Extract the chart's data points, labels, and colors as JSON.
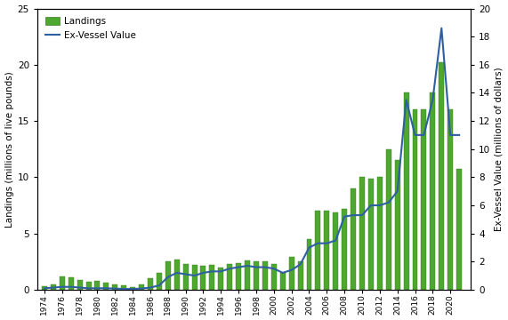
{
  "years": [
    1974,
    1975,
    1976,
    1977,
    1978,
    1979,
    1980,
    1981,
    1982,
    1983,
    1984,
    1985,
    1986,
    1987,
    1988,
    1989,
    1990,
    1991,
    1992,
    1993,
    1994,
    1995,
    1996,
    1997,
    1998,
    1999,
    2000,
    2001,
    2002,
    2003,
    2004,
    2005,
    2006,
    2007,
    2008,
    2009,
    2010,
    2011,
    2012,
    2013,
    2014,
    2015,
    2016,
    2017,
    2018,
    2019,
    2020,
    2021
  ],
  "landings": [
    0.3,
    0.5,
    1.2,
    1.1,
    0.9,
    0.7,
    0.8,
    0.6,
    0.5,
    0.4,
    0.2,
    0.5,
    1.0,
    1.5,
    2.5,
    2.7,
    2.3,
    2.2,
    2.1,
    2.2,
    2.0,
    2.3,
    2.4,
    2.6,
    2.5,
    2.5,
    2.3,
    1.5,
    2.9,
    2.5,
    4.5,
    7.0,
    7.0,
    6.9,
    7.2,
    9.0,
    10.0,
    9.9,
    10.0,
    12.5,
    11.5,
    17.5,
    16.0,
    16.0,
    17.5,
    20.2,
    16.0,
    10.7
  ],
  "ex_vessel_value": [
    0.1,
    0.15,
    0.2,
    0.2,
    0.15,
    0.1,
    0.1,
    0.1,
    0.08,
    0.05,
    0.05,
    0.08,
    0.15,
    0.3,
    0.9,
    1.2,
    1.1,
    1.0,
    1.2,
    1.3,
    1.3,
    1.5,
    1.6,
    1.7,
    1.6,
    1.6,
    1.5,
    1.2,
    1.4,
    1.8,
    3.0,
    3.3,
    3.3,
    3.5,
    5.2,
    5.3,
    5.3,
    6.0,
    6.0,
    6.2,
    7.0,
    13.5,
    11.0,
    11.0,
    13.5,
    18.6,
    11.0,
    11.0
  ],
  "landings_ylim": [
    0,
    25
  ],
  "value_ylim": [
    0,
    20
  ],
  "bar_color": "#4ea72e",
  "line_color": "#2e5fa3",
  "bar_edge_color": "#3a7d22",
  "ylabel_left": "Landings (millions of live pounds)",
  "ylabel_right": "Ex-Vessel Value (millions of dollars)",
  "legend_landings": "Landings",
  "legend_value": "Ex-Vessel Value",
  "xtick_years": [
    1974,
    1976,
    1978,
    1980,
    1982,
    1984,
    1986,
    1988,
    1990,
    1992,
    1994,
    1996,
    1998,
    2000,
    2002,
    2004,
    2006,
    2008,
    2010,
    2012,
    2014,
    2016,
    2018,
    2020
  ],
  "background_color": "#ffffff"
}
